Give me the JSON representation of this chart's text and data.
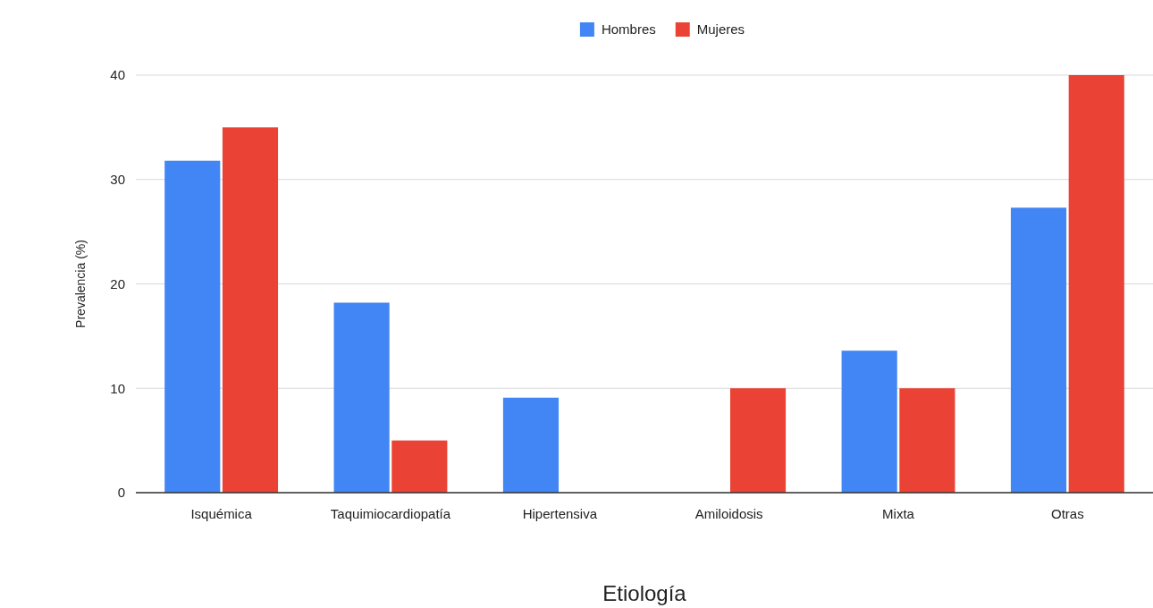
{
  "chart_data": {
    "type": "bar",
    "xlabel": "Etiología",
    "ylabel": "Prevalencia (%)",
    "categories": [
      "Isquémica",
      "Taquimiocardiopatía",
      "Hipertensiva",
      "Amiloidosis",
      "Mixta",
      "Otras"
    ],
    "series": [
      {
        "name": "Hombres",
        "color": "#4285f4",
        "values": [
          31.8,
          18.2,
          9.1,
          0,
          13.6,
          27.3
        ]
      },
      {
        "name": "Mujeres",
        "color": "#ea4335",
        "values": [
          35,
          5,
          0,
          10,
          10,
          40
        ]
      }
    ],
    "ylim": [
      0,
      40
    ],
    "yticks": [
      0,
      10,
      20,
      30,
      40
    ],
    "grid": "y",
    "legend": "top"
  }
}
